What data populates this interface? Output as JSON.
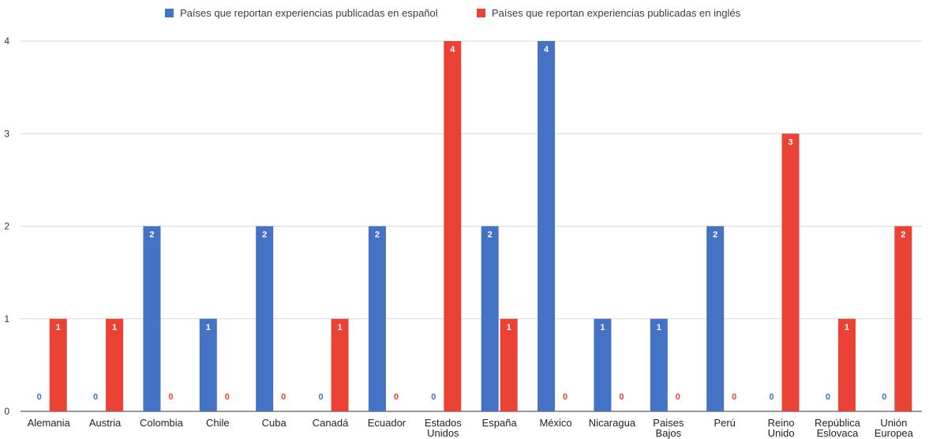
{
  "chart_data": {
    "type": "bar",
    "categories": [
      [
        "Alemania"
      ],
      [
        "Austria"
      ],
      [
        "Colombia"
      ],
      [
        "Chile"
      ],
      [
        "Cuba"
      ],
      [
        "Canadá"
      ],
      [
        "Ecuador"
      ],
      [
        "Estados",
        "Unidos"
      ],
      [
        "España"
      ],
      [
        "México"
      ],
      [
        "Nicaragua"
      ],
      [
        "Paises",
        "Bajos"
      ],
      [
        "Perú"
      ],
      [
        "Reino",
        "Unido"
      ],
      [
        "República",
        "Eslovaca"
      ],
      [
        "Unión",
        "Europea"
      ]
    ],
    "series": [
      {
        "name": "Países que reportan experiencias publicadas en español",
        "color": "#4472c4",
        "values": [
          0,
          0,
          2,
          1,
          2,
          0,
          2,
          0,
          2,
          4,
          1,
          1,
          2,
          0,
          0,
          0
        ]
      },
      {
        "name": "Países que reportan experiencias publicadas en inglés",
        "color": "#ea4335",
        "values": [
          1,
          1,
          0,
          0,
          0,
          1,
          0,
          4,
          1,
          0,
          0,
          0,
          0,
          3,
          1,
          2
        ]
      }
    ],
    "y_ticks": [
      "0",
      "1",
      "2",
      "3",
      "4"
    ],
    "ylim": [
      0,
      4
    ],
    "grid": true,
    "legend_position": "top"
  }
}
